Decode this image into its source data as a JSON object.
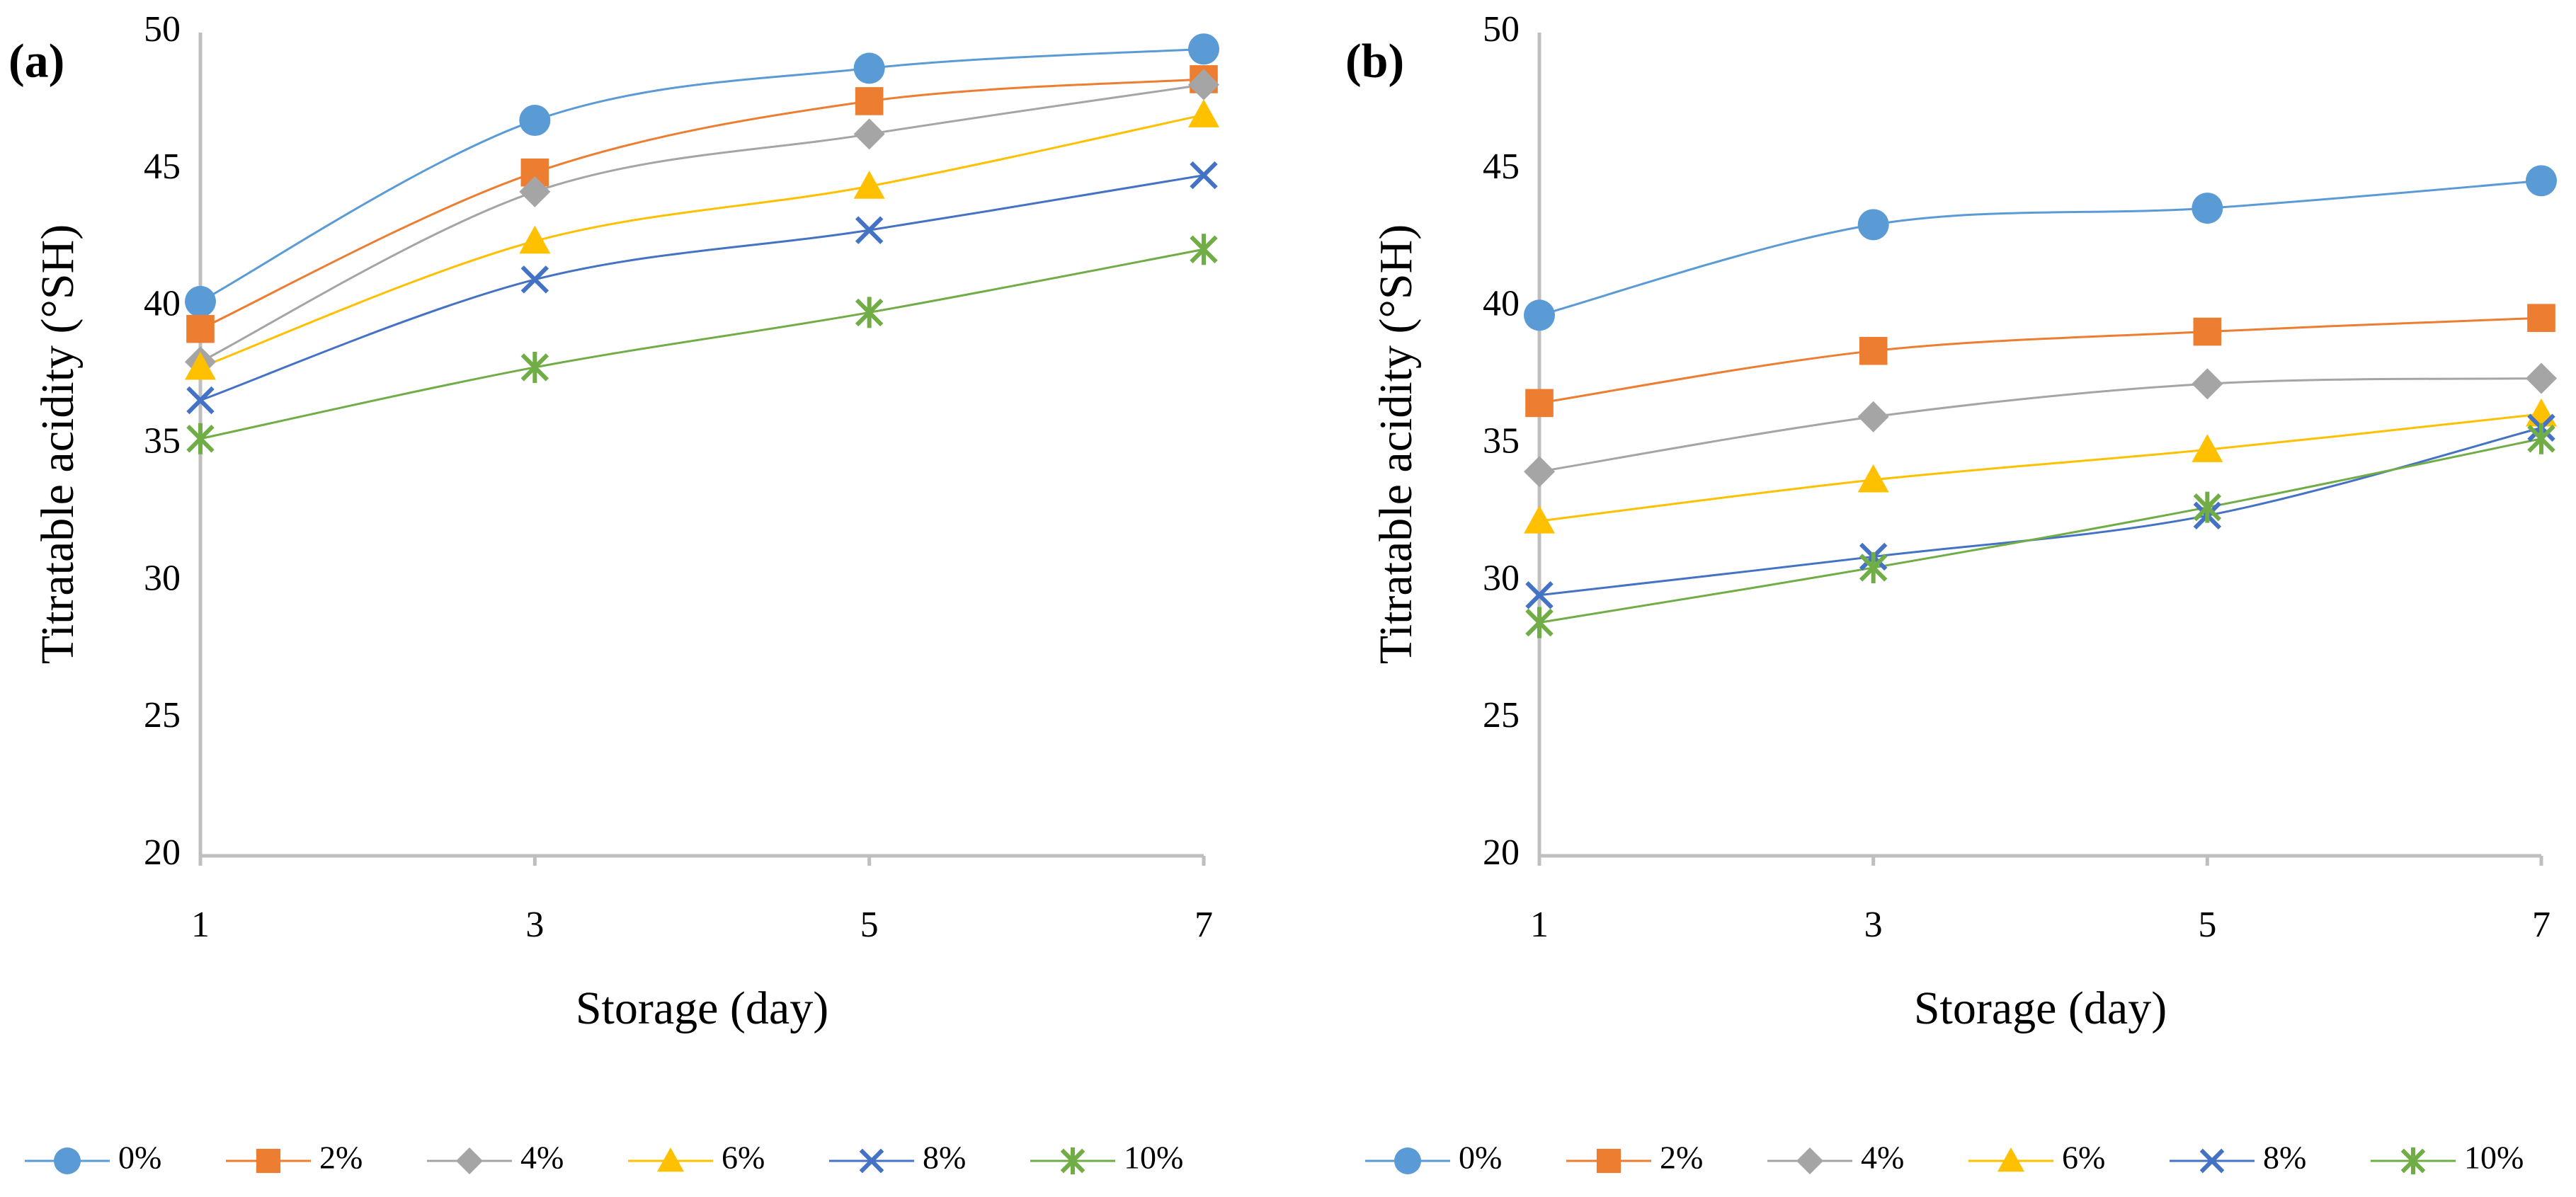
{
  "chart_data": [
    {
      "type": "line",
      "label": "(a)",
      "y_label": "Titratable acidity (°SH)",
      "x_label": "Storage (day)",
      "x": [
        1,
        3,
        5,
        7
      ],
      "xlim": [
        1,
        7
      ],
      "xticks": [
        1,
        3,
        5,
        7
      ],
      "ylim": [
        20,
        50
      ],
      "yticks": [
        20,
        25,
        30,
        35,
        40,
        45,
        50
      ],
      "smooth": true,
      "legend": "bottom",
      "series": [
        {
          "name": "0%",
          "color": "#5b9bd5",
          "marker": "circle",
          "values": [
            40.2,
            46.8,
            48.7,
            49.4
          ]
        },
        {
          "name": "2%",
          "color": "#ed7d31",
          "marker": "square",
          "values": [
            39.2,
            44.9,
            47.5,
            48.3
          ]
        },
        {
          "name": "4%",
          "color": "#a5a5a5",
          "marker": "diamond",
          "values": [
            38.0,
            44.2,
            46.3,
            48.1
          ]
        },
        {
          "name": "6%",
          "color": "#ffc000",
          "marker": "triangle",
          "values": [
            37.8,
            42.4,
            44.4,
            47.0
          ]
        },
        {
          "name": "8%",
          "color": "#4472c4",
          "marker": "x",
          "values": [
            36.6,
            41.0,
            42.8,
            44.8
          ]
        },
        {
          "name": "10%",
          "color": "#70ad47",
          "marker": "asterisk",
          "values": [
            35.2,
            37.8,
            39.8,
            42.1
          ]
        }
      ]
    },
    {
      "type": "line",
      "label": "(b)",
      "y_label": "Titratable acidity (°SH)",
      "x_label": "Storage (day)",
      "x": [
        1,
        3,
        5,
        7
      ],
      "xlim": [
        1,
        7
      ],
      "xticks": [
        1,
        3,
        5,
        7
      ],
      "ylim": [
        20,
        50
      ],
      "yticks": [
        20,
        25,
        30,
        35,
        40,
        45,
        50
      ],
      "smooth": true,
      "legend": "bottom",
      "series": [
        {
          "name": "0%",
          "color": "#5b9bd5",
          "marker": "circle",
          "values": [
            39.7,
            43.0,
            43.6,
            44.6
          ]
        },
        {
          "name": "2%",
          "color": "#ed7d31",
          "marker": "square",
          "values": [
            36.5,
            38.4,
            39.1,
            39.6
          ]
        },
        {
          "name": "4%",
          "color": "#a5a5a5",
          "marker": "diamond",
          "values": [
            34.0,
            36.0,
            37.2,
            37.4
          ]
        },
        {
          "name": "6%",
          "color": "#ffc000",
          "marker": "triangle",
          "values": [
            32.2,
            33.7,
            34.8,
            36.1
          ]
        },
        {
          "name": "8%",
          "color": "#4472c4",
          "marker": "x",
          "values": [
            29.5,
            30.9,
            32.4,
            35.6
          ]
        },
        {
          "name": "10%",
          "color": "#70ad47",
          "marker": "asterisk",
          "values": [
            28.5,
            30.5,
            32.7,
            35.2
          ]
        }
      ]
    }
  ]
}
